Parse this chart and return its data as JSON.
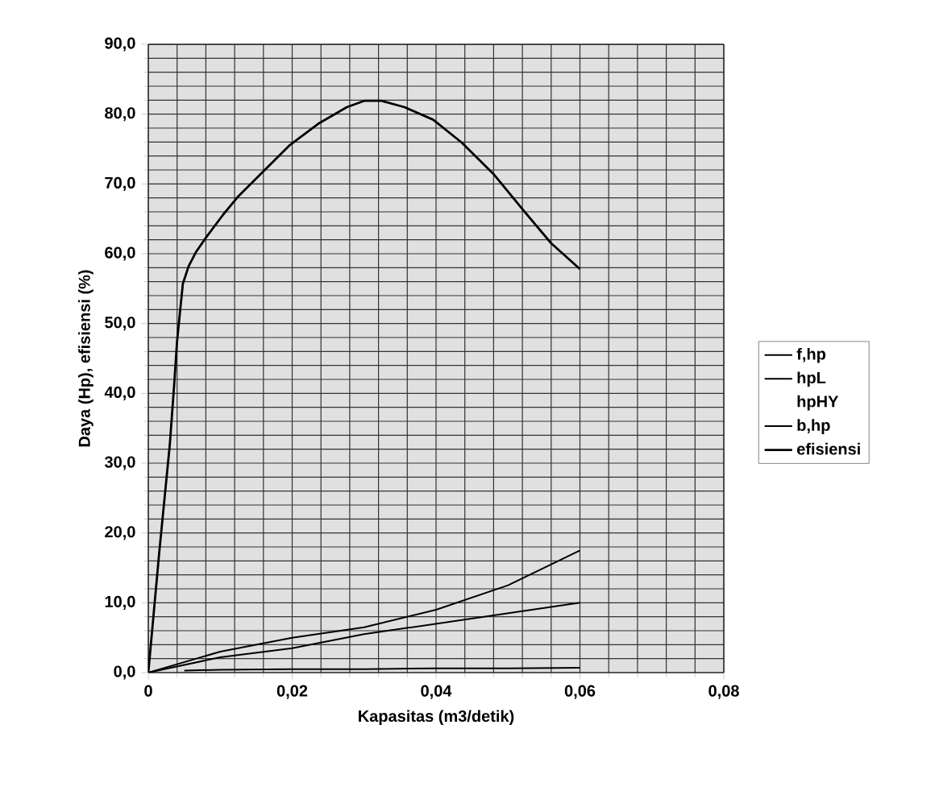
{
  "chart_data": {
    "type": "line",
    "xlabel": "Kapasitas (m3/detik)",
    "ylabel": "Daya (Hp), efisiensi (%)",
    "xlim": [
      0,
      0.08
    ],
    "ylim": [
      0,
      90
    ],
    "xticks": [
      {
        "value": 0,
        "label": "0"
      },
      {
        "value": 0.02,
        "label": "0,02"
      },
      {
        "value": 0.04,
        "label": "0,04"
      },
      {
        "value": 0.06,
        "label": "0,06"
      },
      {
        "value": 0.08,
        "label": "0,08"
      }
    ],
    "yticks": [
      {
        "value": 0,
        "label": "0,0"
      },
      {
        "value": 10,
        "label": "10,0"
      },
      {
        "value": 20,
        "label": "20,0"
      },
      {
        "value": 30,
        "label": "30,0"
      },
      {
        "value": 40,
        "label": "40,0"
      },
      {
        "value": 50,
        "label": "50,0"
      },
      {
        "value": 60,
        "label": "60,0"
      },
      {
        "value": 70,
        "label": "70,0"
      },
      {
        "value": 80,
        "label": "80,0"
      },
      {
        "value": 90,
        "label": "90,0"
      }
    ],
    "grid": true,
    "legend": "right",
    "marker": "none",
    "line_style": "solid",
    "series": [
      {
        "name": "f,hp",
        "color": "#000000",
        "x": [
          0.005,
          0.01,
          0.02,
          0.03,
          0.04,
          0.05,
          0.06
        ],
        "values": [
          0.3,
          0.4,
          0.5,
          0.5,
          0.6,
          0.6,
          0.7
        ]
      },
      {
        "name": "hpL",
        "color": "#000000",
        "x": [
          0,
          0.01,
          0.02,
          0.03,
          0.04,
          0.05,
          0.06
        ],
        "values": [
          0,
          2.2,
          3.5,
          5.5,
          7,
          8.5,
          10
        ]
      },
      {
        "name": "hpHY"
      },
      {
        "name": "b,hp",
        "color": "#000000",
        "x": [
          0,
          0.01,
          0.02,
          0.03,
          0.04,
          0.05,
          0.06
        ],
        "values": [
          0,
          3,
          5,
          6.5,
          9,
          12.5,
          17.5
        ]
      },
      {
        "name": "efisiensi",
        "color": "#000000",
        "x": [
          0,
          0.0015,
          0.003,
          0.0036,
          0.004,
          0.0044,
          0.0048,
          0.0056,
          0.0066,
          0.008,
          0.0104,
          0.0124,
          0.0156,
          0.0196,
          0.0236,
          0.0276,
          0.03,
          0.0324,
          0.0356,
          0.0396,
          0.0436,
          0.048,
          0.052,
          0.056,
          0.06
        ],
        "values": [
          0,
          17,
          32.8,
          41.3,
          47.5,
          51.6,
          55.7,
          58.2,
          60.2,
          62.3,
          65.6,
          68.1,
          71.4,
          75.5,
          78.6,
          81.0,
          81.9,
          81.9,
          81.0,
          79.2,
          75.9,
          71.4,
          66.4,
          61.5,
          57.8
        ]
      }
    ]
  }
}
